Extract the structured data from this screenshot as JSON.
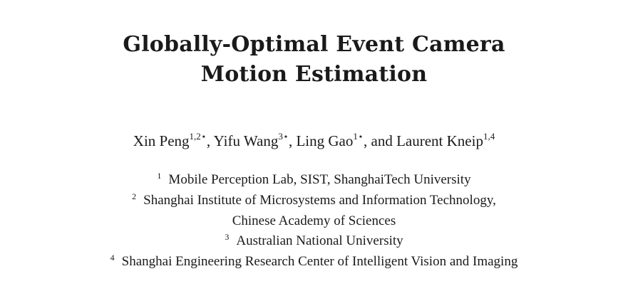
{
  "title": {
    "line1": "Globally-Optimal Event Camera",
    "line2": "Motion Estimation"
  },
  "authors": [
    {
      "name": "Xin Peng",
      "marks": "1,2⋆",
      "sep": ", "
    },
    {
      "name": "Yifu Wang",
      "marks": "3⋆",
      "sep": ", "
    },
    {
      "name": "Ling Gao",
      "marks": "1⋆",
      "sep": ", and "
    },
    {
      "name": "Laurent Kneip",
      "marks": "1,4",
      "sep": ""
    }
  ],
  "affiliations": [
    {
      "num": "1",
      "text": "Mobile Perception Lab, SIST, ShanghaiTech University"
    },
    {
      "num": "2",
      "text": "Shanghai Institute of Microsystems and Information Technology,"
    },
    {
      "num": "",
      "text": "Chinese Academy of Sciences"
    },
    {
      "num": "3",
      "text": "Australian National University"
    },
    {
      "num": "4",
      "text": "Shanghai Engineering Research Center of Intelligent Vision and Imaging"
    }
  ]
}
